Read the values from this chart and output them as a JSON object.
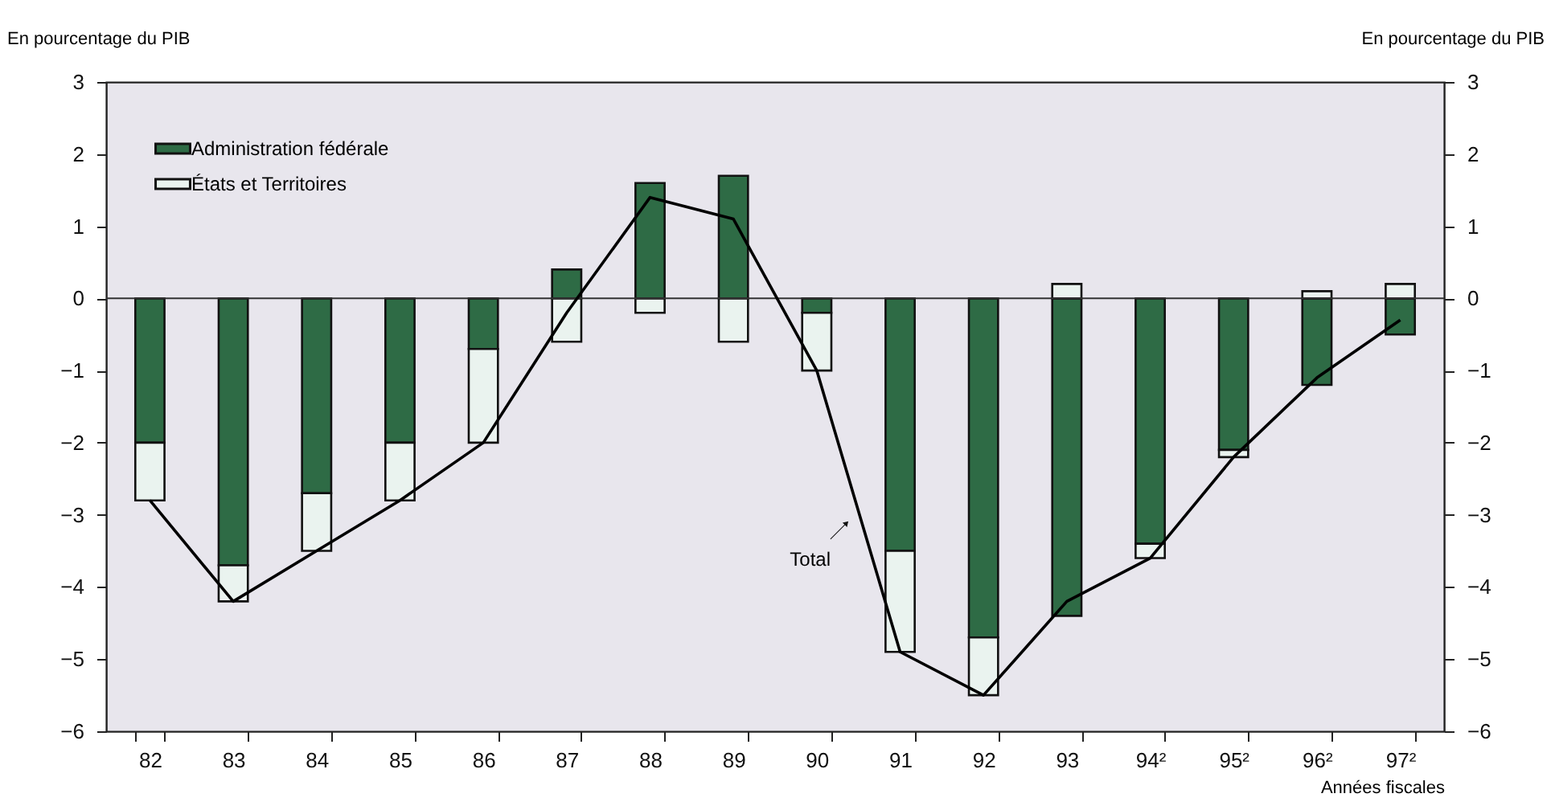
{
  "chart_data": {
    "type": "bar",
    "stacked": true,
    "ylabel": "En pourcentage du PIB",
    "y2label": "En pourcentage du PIB",
    "xlabel": "Années fiscales",
    "categories": [
      "82",
      "83",
      "84",
      "85",
      "86",
      "87",
      "88",
      "89",
      "90",
      "91",
      "92",
      "93",
      "94²",
      "95²",
      "96²",
      "97²"
    ],
    "series": [
      {
        "name": "Administration fédérale",
        "color": "#2e6b45",
        "values": [
          -2.0,
          -3.7,
          -2.7,
          -2.0,
          -0.7,
          0.4,
          1.6,
          1.7,
          -0.2,
          -3.5,
          -4.7,
          -4.4,
          -3.4,
          -2.1,
          -1.2,
          -0.5
        ]
      },
      {
        "name": "États et Territoires",
        "color": "#eaf3ef",
        "values": [
          -0.8,
          -0.5,
          -0.8,
          -0.8,
          -1.3,
          -0.6,
          -0.2,
          -0.6,
          -0.8,
          -1.4,
          -0.8,
          0.2,
          -0.2,
          -0.1,
          0.1,
          0.2
        ]
      },
      {
        "name": "Total",
        "type": "line",
        "color": "#000000",
        "values": [
          -2.8,
          -4.2,
          -3.5,
          -2.8,
          -2.0,
          -0.2,
          1.4,
          1.1,
          -1.0,
          -4.9,
          -5.5,
          -4.2,
          -3.6,
          -2.2,
          -1.1,
          -0.3
        ]
      }
    ],
    "ylim": [
      -6,
      3
    ],
    "yticks": [
      -6,
      -5,
      -4,
      -3,
      -2,
      -1,
      0,
      1,
      2,
      3
    ],
    "y2lim": [
      -6,
      3
    ],
    "y2ticks": [
      -6,
      -5,
      -4,
      -3,
      -2,
      -1,
      0,
      1,
      2,
      3
    ],
    "ref_lines": [
      {
        "axis": "y",
        "value": 0,
        "color": "#333333"
      }
    ],
    "legend": "top left",
    "grid": false,
    "marker": "none",
    "line_style": "solid"
  }
}
